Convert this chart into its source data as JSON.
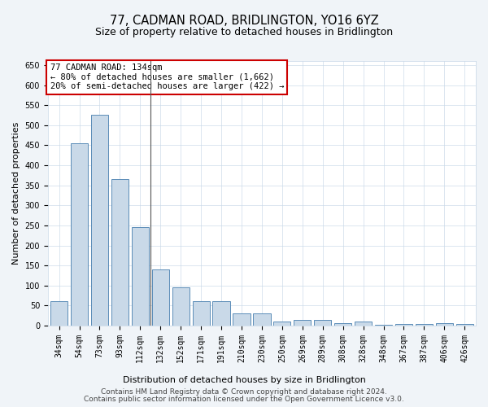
{
  "title": "77, CADMAN ROAD, BRIDLINGTON, YO16 6YZ",
  "subtitle": "Size of property relative to detached houses in Bridlington",
  "xlabel": "Distribution of detached houses by size in Bridlington",
  "ylabel": "Number of detached properties",
  "categories": [
    "34sqm",
    "54sqm",
    "73sqm",
    "93sqm",
    "112sqm",
    "132sqm",
    "152sqm",
    "171sqm",
    "191sqm",
    "210sqm",
    "230sqm",
    "250sqm",
    "269sqm",
    "289sqm",
    "308sqm",
    "328sqm",
    "348sqm",
    "367sqm",
    "387sqm",
    "406sqm",
    "426sqm"
  ],
  "values": [
    60,
    455,
    525,
    365,
    245,
    140,
    95,
    60,
    60,
    30,
    30,
    10,
    15,
    15,
    7,
    10,
    2,
    5,
    5,
    7,
    5
  ],
  "bar_color": "#c9d9e8",
  "bar_edge_color": "#5b8db8",
  "vline_color": "#555555",
  "annotation_text": "77 CADMAN ROAD: 134sqm\n← 80% of detached houses are smaller (1,662)\n20% of semi-detached houses are larger (422) →",
  "annotation_box_color": "#ffffff",
  "annotation_box_edge_color": "#cc0000",
  "ylim": [
    0,
    660
  ],
  "yticks": [
    0,
    50,
    100,
    150,
    200,
    250,
    300,
    350,
    400,
    450,
    500,
    550,
    600,
    650
  ],
  "footer_line1": "Contains HM Land Registry data © Crown copyright and database right 2024.",
  "footer_line2": "Contains public sector information licensed under the Open Government Licence v3.0.",
  "bg_color": "#f0f4f8",
  "plot_bg_color": "#ffffff",
  "title_fontsize": 10.5,
  "subtitle_fontsize": 9,
  "axis_label_fontsize": 8,
  "tick_fontsize": 7,
  "annotation_fontsize": 7.5,
  "footer_fontsize": 6.5
}
